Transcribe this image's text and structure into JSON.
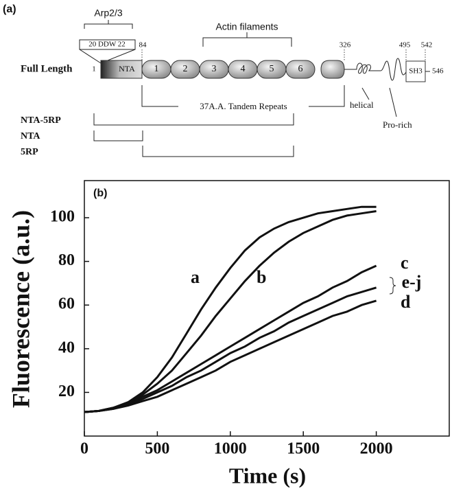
{
  "diagram": {
    "panel_label": "(a)",
    "arp_label": "Arp2/3",
    "ddw_label": "20 DDW 22",
    "full_length": "Full Length",
    "start": "1",
    "nta": "NTA",
    "pos_84": "84",
    "pos_326": "326",
    "pos_495": "495",
    "pos_542": "542",
    "pos_546": "546",
    "actin_label": "Actin filaments",
    "repeats": [
      "1",
      "2",
      "3",
      "4",
      "5",
      "6"
    ],
    "tandem_label": "37A.A. Tandem Repeats",
    "helical": "helical",
    "pro_rich": "Pro-rich",
    "sh3": "SH3",
    "constructs": [
      "NTA-5RP",
      "NTA",
      "5RP"
    ]
  },
  "chart_data": {
    "type": "line",
    "panel_label": "(b)",
    "x_label": "Time (s)",
    "y_label": "Fluorescence (a.u.)",
    "x": [
      0,
      100,
      200,
      300,
      400,
      500,
      600,
      700,
      800,
      900,
      1000,
      1100,
      1200,
      1300,
      1400,
      1500,
      1600,
      1700,
      1800,
      1900,
      2000
    ],
    "series": [
      {
        "name": "a",
        "color": "#111111",
        "values": [
          11,
          11.5,
          13,
          15.5,
          20,
          27,
          36,
          47,
          58,
          68,
          77,
          85,
          91,
          95,
          98,
          100,
          102,
          103,
          104,
          105,
          105
        ]
      },
      {
        "name": "b",
        "color": "#111111",
        "values": [
          11,
          11.5,
          13,
          15,
          19,
          24,
          30,
          38,
          46,
          55,
          63,
          71,
          78,
          84,
          89,
          93,
          96,
          99,
          101,
          102,
          103
        ]
      },
      {
        "name": "c",
        "color": "#111111",
        "values": [
          11,
          11.5,
          13,
          15,
          18,
          21,
          25,
          29,
          33,
          37,
          41,
          45,
          49,
          53,
          57,
          61,
          64,
          68,
          71,
          75,
          78
        ]
      },
      {
        "name": "e-j",
        "color": "#111111",
        "values": [
          11,
          11.5,
          12.5,
          14.5,
          17,
          20,
          23,
          27,
          30,
          34,
          38,
          41,
          45,
          48,
          52,
          55,
          58,
          61,
          64,
          66,
          68
        ]
      },
      {
        "name": "d",
        "color": "#111111",
        "values": [
          11,
          11.5,
          12.5,
          14,
          16,
          18,
          21,
          24,
          27,
          30,
          34,
          37,
          40,
          43,
          46,
          49,
          52,
          55,
          57,
          60,
          62
        ]
      }
    ],
    "xlim": [
      0,
      2500
    ],
    "ylim": [
      0,
      117
    ],
    "xticks": [
      0,
      500,
      1000,
      1500,
      2000
    ],
    "yticks": [
      20,
      40,
      60,
      80,
      100
    ]
  }
}
